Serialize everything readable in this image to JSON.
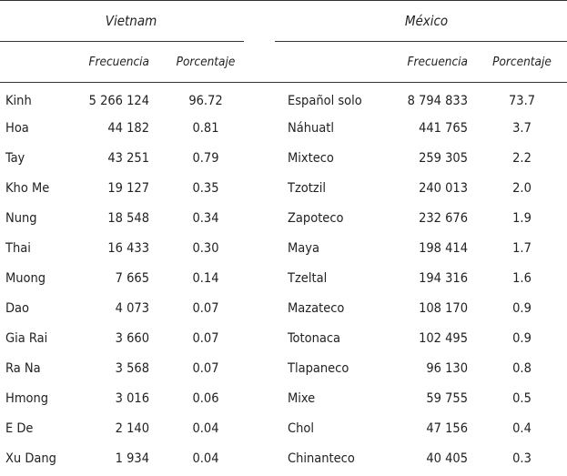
{
  "headers": {
    "vietnam": "Vietnam",
    "mexico": "México",
    "frecuencia": "Frecuencia",
    "porcentaje": "Porcentaje"
  },
  "rows": [
    {
      "vn_name": "Kinh",
      "vn_freq": "5 266 124",
      "vn_pct": "96.72",
      "mx_name": "Español solo",
      "mx_freq": "8 794 833",
      "mx_pct": "73.7"
    },
    {
      "vn_name": "Hoa",
      "vn_freq": "44 182",
      "vn_pct": "0.81",
      "mx_name": "Náhuatl",
      "mx_freq": "441 765",
      "mx_pct": "3.7"
    },
    {
      "vn_name": "Tay",
      "vn_freq": "43 251",
      "vn_pct": "0.79",
      "mx_name": "Mixteco",
      "mx_freq": "259 305",
      "mx_pct": "2.2"
    },
    {
      "vn_name": "Kho Me",
      "vn_freq": "19 127",
      "vn_pct": "0.35",
      "mx_name": "Tzotzil",
      "mx_freq": "240 013",
      "mx_pct": "2.0"
    },
    {
      "vn_name": "Nung",
      "vn_freq": "18 548",
      "vn_pct": "0.34",
      "mx_name": "Zapoteco",
      "mx_freq": "232 676",
      "mx_pct": "1.9"
    },
    {
      "vn_name": "Thai",
      "vn_freq": "16 433",
      "vn_pct": "0.30",
      "mx_name": "Maya",
      "mx_freq": "198 414",
      "mx_pct": "1.7"
    },
    {
      "vn_name": "Muong",
      "vn_freq": "7 665",
      "vn_pct": "0.14",
      "mx_name": "Tzeltal",
      "mx_freq": "194 316",
      "mx_pct": "1.6"
    },
    {
      "vn_name": "Dao",
      "vn_freq": "4 073",
      "vn_pct": "0.07",
      "mx_name": "Mazateco",
      "mx_freq": "108 170",
      "mx_pct": "0.9"
    },
    {
      "vn_name": "Gia Rai",
      "vn_freq": "3 660",
      "vn_pct": "0.07",
      "mx_name": "Totonaca",
      "mx_freq": "102 495",
      "mx_pct": "0.9"
    },
    {
      "vn_name": "Ra Na",
      "vn_freq": "3 568",
      "vn_pct": "0.07",
      "mx_name": "Tlapaneco",
      "mx_freq": "96 130",
      "mx_pct": "0.8"
    },
    {
      "vn_name": "Hmong",
      "vn_freq": "3 016",
      "vn_pct": "0.06",
      "mx_name": "Mixe",
      "mx_freq": "59 755",
      "mx_pct": "0.5"
    },
    {
      "vn_name": "E De",
      "vn_freq": "2 140",
      "vn_pct": "0.04",
      "mx_name": "Chol",
      "mx_freq": "47 156",
      "mx_pct": "0.4"
    },
    {
      "vn_name": "Xu Dang",
      "vn_freq": "1 934",
      "vn_pct": "0.04",
      "mx_name": "Chinanteco",
      "mx_freq": "40 405",
      "mx_pct": "0.3"
    }
  ]
}
